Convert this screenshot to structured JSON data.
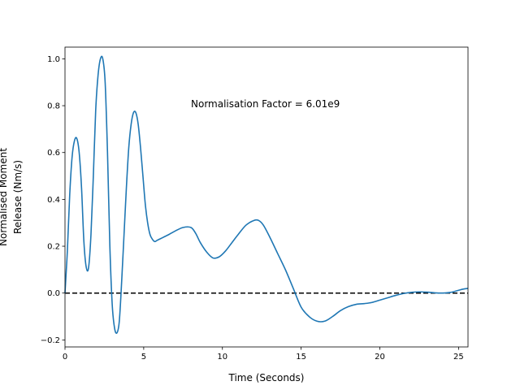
{
  "chart_data": {
    "type": "line",
    "title": "",
    "xlabel": "Time (Seconds)",
    "ylabel_lines": [
      "Normalised Moment",
      "Release (Nm/s)"
    ],
    "xlim": [
      0,
      25.6
    ],
    "ylim": [
      -0.23,
      1.05
    ],
    "xticks": [
      0,
      5,
      10,
      15,
      20,
      25
    ],
    "yticks": [
      -0.2,
      0.0,
      0.2,
      0.4,
      0.6,
      0.8,
      1.0
    ],
    "ytick_labels": [
      "−0.2",
      "0.0",
      "0.2",
      "0.4",
      "0.6",
      "0.8",
      "1.0"
    ],
    "annotation": "Normalisation Factor = 6.01e9",
    "reference_line": {
      "y": 0.0,
      "style": "dashed",
      "color": "#000000"
    },
    "series": [
      {
        "color": "#1f77b4",
        "x": [
          0,
          0.15,
          0.3,
          0.45,
          0.6,
          0.75,
          0.9,
          1.05,
          1.2,
          1.35,
          1.5,
          1.65,
          1.8,
          1.95,
          2.1,
          2.25,
          2.4,
          2.55,
          2.7,
          2.85,
          3.0,
          3.15,
          3.3,
          3.45,
          3.6,
          3.75,
          3.9,
          4.05,
          4.2,
          4.35,
          4.5,
          4.65,
          4.8,
          4.95,
          5.1,
          5.25,
          5.4,
          5.55,
          5.7,
          5.85,
          6.0,
          6.3,
          6.6,
          7.0,
          7.5,
          8.0,
          8.3,
          8.6,
          9.0,
          9.4,
          9.8,
          10.2,
          10.6,
          11.0,
          11.5,
          12.0,
          12.3,
          12.6,
          13.0,
          13.5,
          14.0,
          14.5,
          15.0,
          15.5,
          16.0,
          16.5,
          17.0,
          17.5,
          18.0,
          18.5,
          19.0,
          19.5,
          20.0,
          20.5,
          21.0,
          21.5,
          22.0,
          22.5,
          23.0,
          23.5,
          24.0,
          24.5,
          25.0,
          25.3,
          25.6
        ],
        "y": [
          0.0,
          0.18,
          0.42,
          0.58,
          0.65,
          0.66,
          0.6,
          0.45,
          0.22,
          0.11,
          0.11,
          0.25,
          0.5,
          0.78,
          0.93,
          1.0,
          1.0,
          0.9,
          0.6,
          0.2,
          -0.05,
          -0.15,
          -0.17,
          -0.12,
          0.05,
          0.25,
          0.45,
          0.62,
          0.72,
          0.77,
          0.77,
          0.72,
          0.62,
          0.5,
          0.38,
          0.3,
          0.25,
          0.23,
          0.22,
          0.225,
          0.23,
          0.24,
          0.25,
          0.265,
          0.28,
          0.28,
          0.255,
          0.215,
          0.175,
          0.15,
          0.155,
          0.18,
          0.215,
          0.25,
          0.29,
          0.31,
          0.31,
          0.29,
          0.24,
          0.17,
          0.1,
          0.02,
          -0.06,
          -0.1,
          -0.12,
          -0.12,
          -0.1,
          -0.075,
          -0.058,
          -0.048,
          -0.045,
          -0.04,
          -0.03,
          -0.02,
          -0.01,
          -0.002,
          0.003,
          0.005,
          0.004,
          0.001,
          0.0,
          0.003,
          0.012,
          0.017,
          0.02
        ]
      }
    ]
  }
}
